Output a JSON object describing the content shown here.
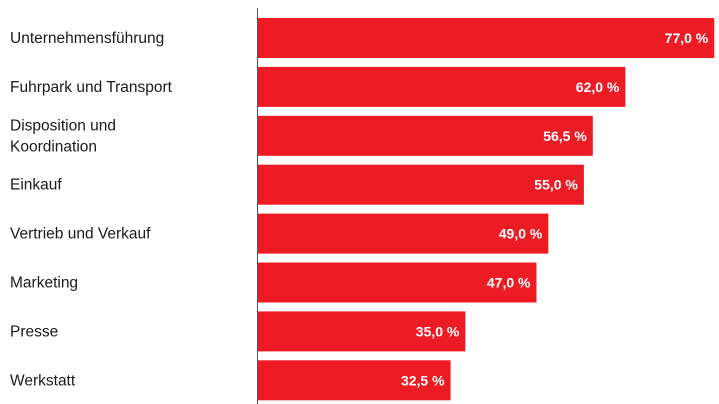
{
  "chart_data": {
    "type": "bar",
    "orientation": "horizontal",
    "categories": [
      [
        "Unternehmensführung"
      ],
      [
        "Fuhrpark und Transport"
      ],
      [
        "Disposition und",
        "Koordination"
      ],
      [
        "Einkauf"
      ],
      [
        "Vertrieb und Verkauf"
      ],
      [
        "Marketing"
      ],
      [
        "Presse"
      ],
      [
        "Werkstatt"
      ]
    ],
    "values": [
      77.0,
      62.0,
      56.5,
      55.0,
      49.0,
      47.0,
      35.0,
      32.5
    ],
    "value_labels": [
      "77,0 %",
      "62,0 %",
      "56,5 %",
      "55,0 %",
      "49,0 %",
      "47,0 %",
      "35,0 %",
      "32,5 %"
    ],
    "xlim": [
      0,
      77.8
    ],
    "grid": false,
    "colors": {
      "bar": "#ed1c24",
      "axis": "#555555"
    }
  }
}
